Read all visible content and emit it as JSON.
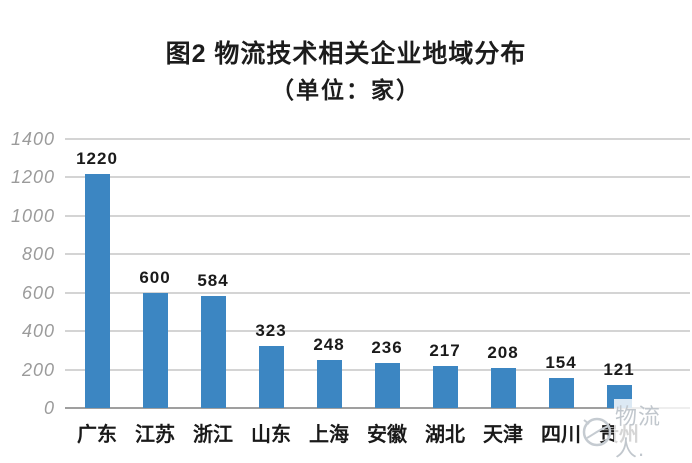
{
  "title": {
    "line1": "图2 物流技术相关企业地域分布",
    "line2": "（单位：家）"
  },
  "chart_data": {
    "type": "bar",
    "title": "图2 物流技术相关企业地域分布（单位：家）",
    "categories": [
      "广东",
      "江苏",
      "浙江",
      "山东",
      "上海",
      "安徽",
      "湖北",
      "天津",
      "四川",
      "贵州"
    ],
    "values": [
      1220,
      600,
      584,
      323,
      248,
      236,
      217,
      208,
      154,
      121
    ],
    "value_labels": [
      "1220",
      "600",
      "584",
      "323",
      "248",
      "236",
      "217",
      "208",
      "154",
      "121"
    ],
    "xlabel": "",
    "ylabel": "",
    "ylim": [
      0,
      1400
    ],
    "yticks": [
      0,
      200,
      400,
      600,
      800,
      1000,
      1200,
      1400
    ],
    "grid": true,
    "legend": "none",
    "bar_color": "#3c86c2",
    "gridline_color": "#d4d4d4",
    "axis_color": "#9f9f9f",
    "ytick_color": "#9b9b9b",
    "label_color": "#1a1a1a"
  },
  "watermark": {
    "text": "物流人.",
    "logo": "globe-swirl",
    "color": "#c1c7cd"
  }
}
